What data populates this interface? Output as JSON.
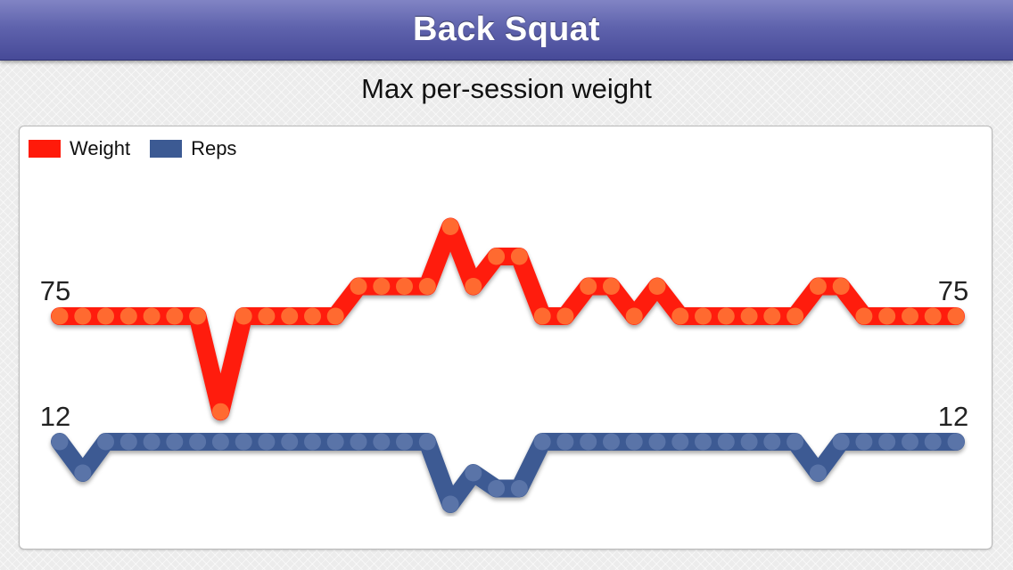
{
  "header": {
    "title": "Back Squat"
  },
  "chart_data": {
    "type": "line",
    "title": "Max per-session weight",
    "xlabel": "",
    "ylabel": "",
    "legend": "top-left",
    "grid": false,
    "series": [
      {
        "name": "Weight",
        "color": "#ff1a0a",
        "marker_color": "#ff6a30",
        "first_label": "75",
        "last_label": "75",
        "values": [
          75,
          75,
          75,
          75,
          75,
          75,
          75,
          59,
          75,
          75,
          75,
          75,
          75,
          80,
          80,
          80,
          80,
          90,
          80,
          85,
          85,
          75,
          75,
          80,
          80,
          75,
          80,
          75,
          75,
          75,
          75,
          75,
          75,
          80,
          80,
          75,
          75,
          75,
          75,
          75
        ]
      },
      {
        "name": "Reps",
        "color": "#3c5a93",
        "marker_color": "#5a74a8",
        "first_label": "12",
        "last_label": "12",
        "values": [
          12,
          10,
          12,
          12,
          12,
          12,
          12,
          12,
          12,
          12,
          12,
          12,
          12,
          12,
          12,
          12,
          12,
          8,
          10,
          9,
          9,
          12,
          12,
          12,
          12,
          12,
          12,
          12,
          12,
          12,
          12,
          12,
          12,
          10,
          12,
          12,
          12,
          12,
          12,
          12
        ]
      }
    ]
  }
}
